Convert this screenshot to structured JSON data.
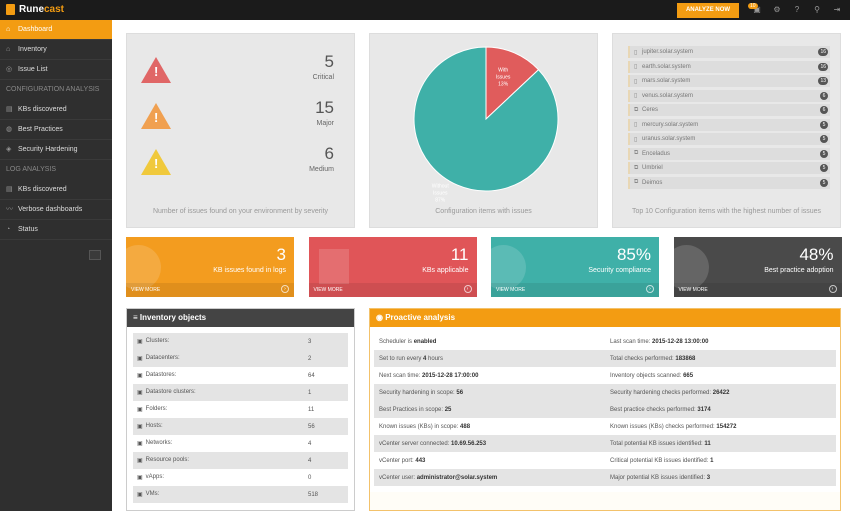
{
  "app": {
    "logo_a": "Rune",
    "logo_b": "cast",
    "analyze_label": "ANALYZE NOW",
    "notification_count": "10"
  },
  "sidebar": {
    "items": [
      {
        "label": "Dashboard",
        "icon": "home-icon",
        "type": "item",
        "active": true
      },
      {
        "label": "Inventory",
        "icon": "inventory-icon",
        "type": "item"
      },
      {
        "label": "Issue List",
        "icon": "issues-icon",
        "type": "item"
      },
      {
        "label": "CONFIGURATION ANALYSIS",
        "type": "header"
      },
      {
        "label": "KBs discovered",
        "icon": "kb-icon",
        "type": "item"
      },
      {
        "label": "Best Practices",
        "icon": "globe-icon",
        "type": "item"
      },
      {
        "label": "Security Hardening",
        "icon": "shield-icon",
        "type": "item"
      },
      {
        "label": "LOG ANALYSIS",
        "type": "header"
      },
      {
        "label": "KBs discovered",
        "icon": "kb-icon",
        "type": "item"
      },
      {
        "label": "Verbose dashboards",
        "icon": "chart-icon",
        "type": "item"
      },
      {
        "label": "Status",
        "icon": "gauge-icon",
        "type": "item"
      }
    ]
  },
  "severity": {
    "caption": "Number of issues found on your environment by severity",
    "items": [
      {
        "count": "5",
        "label": "Critical",
        "color": "#e06666"
      },
      {
        "count": "15",
        "label": "Major",
        "color": "#f0a050"
      },
      {
        "count": "6",
        "label": "Medium",
        "color": "#f0c93c"
      }
    ]
  },
  "chart_data": {
    "type": "pie",
    "title": "Configuration items with issues",
    "labels": [
      "With Issues",
      "Without Issues"
    ],
    "values": [
      13,
      87
    ],
    "display": [
      "13%",
      "87%"
    ],
    "colors": [
      "#e05c5c",
      "#3fb0a8"
    ]
  },
  "top10": {
    "caption": "Top 10 Configuration items with the highest number of issues",
    "items": [
      {
        "name": "jupiter.solar.system",
        "count": "16",
        "icon": "host-icon"
      },
      {
        "name": "earth.solar.system",
        "count": "16",
        "icon": "host-icon"
      },
      {
        "name": "mars.solar.system",
        "count": "13",
        "icon": "host-icon"
      },
      {
        "name": "venus.solar.system",
        "count": "6",
        "icon": "host-icon"
      },
      {
        "name": "Ceres",
        "count": "6",
        "icon": "vm-icon"
      },
      {
        "name": "mercury.solar.system",
        "count": "5",
        "icon": "host-icon"
      },
      {
        "name": "uranus.solar.system",
        "count": "5",
        "icon": "host-icon"
      },
      {
        "name": "Enceladus",
        "count": "5",
        "icon": "vm-icon"
      },
      {
        "name": "Umbriel",
        "count": "5",
        "icon": "vm-icon"
      },
      {
        "name": "Deimos",
        "count": "5",
        "icon": "vm-icon"
      }
    ]
  },
  "kpis": [
    {
      "value": "3",
      "label": "KB issues found in logs",
      "more": "VIEW MORE",
      "color": "#f39c1f"
    },
    {
      "value": "11",
      "label": "KBs applicable",
      "more": "VIEW MORE",
      "color": "#e05558"
    },
    {
      "value": "85%",
      "label": "Security compliance",
      "more": "VIEW MORE",
      "color": "#3fb0a8"
    },
    {
      "value": "48%",
      "label": "Best practice adoption",
      "more": "VIEW MORE",
      "color": "#4a4a4a"
    }
  ],
  "inventory": {
    "title": "Inventory objects",
    "rows": [
      {
        "label": "Clusters:",
        "value": "3"
      },
      {
        "label": "Datacenters:",
        "value": "2"
      },
      {
        "label": "Datastores:",
        "value": "64"
      },
      {
        "label": "Datastore clusters:",
        "value": "1"
      },
      {
        "label": "Folders:",
        "value": "11"
      },
      {
        "label": "Hosts:",
        "value": "56"
      },
      {
        "label": "Networks:",
        "value": "4"
      },
      {
        "label": "Resource pools:",
        "value": "4"
      },
      {
        "label": "vApps:",
        "value": "0"
      },
      {
        "label": "VMs:",
        "value": "518"
      }
    ]
  },
  "proactive": {
    "title": "Proactive analysis",
    "rows": [
      [
        {
          "k": "Scheduler is",
          "v": "enabled"
        },
        {
          "k": "Last scan time:",
          "v": "2015-12-28 13:00:00"
        }
      ],
      [
        {
          "k": "Set to run every",
          "v": "4",
          "s": "hours"
        },
        {
          "k": "Total checks performed:",
          "v": "183868"
        }
      ],
      [
        {
          "k": "Next scan time:",
          "v": "2015-12-28 17:00:00"
        },
        {
          "k": "Inventory objects scanned:",
          "v": "665"
        }
      ],
      [
        {
          "k": "Security hardening in scope:",
          "v": "56"
        },
        {
          "k": "Security hardening checks performed:",
          "v": "26422"
        }
      ],
      [
        {
          "k": "Best Practices in scope:",
          "v": "25"
        },
        {
          "k": "Best practice checks performed:",
          "v": "3174"
        }
      ],
      [
        {
          "k": "Known issues (KBs) in scope:",
          "v": "488"
        },
        {
          "k": "Known issues (KBs) checks performed:",
          "v": "154272"
        }
      ],
      [
        {
          "k": "vCenter server connected:",
          "v": "10.69.56.253"
        },
        {
          "k": "Total potential KB issues identified:",
          "v": "11"
        }
      ],
      [
        {
          "k": "vCenter port:",
          "v": "443"
        },
        {
          "k": "Critical potential KB issues identified:",
          "v": "1"
        }
      ],
      [
        {
          "k": "vCenter user:",
          "v": "administrator@solar.system"
        },
        {
          "k": "Major potential KB issues identified:",
          "v": "3"
        }
      ]
    ]
  }
}
